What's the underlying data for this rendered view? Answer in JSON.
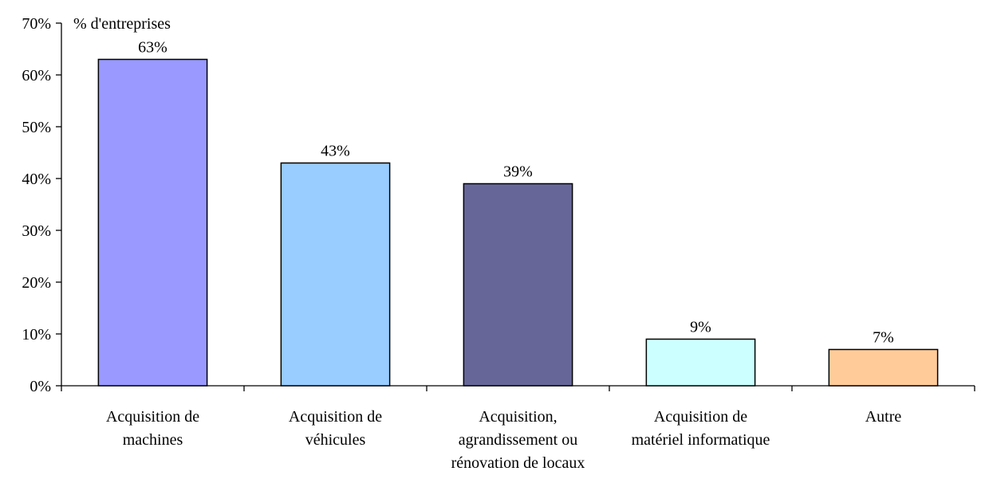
{
  "chart_data": {
    "type": "bar",
    "title": "",
    "ylabel": "% d'entreprises",
    "xlabel": "",
    "ylim": [
      0,
      70
    ],
    "ytick_step": 10,
    "ytick_labels": [
      "0%",
      "10%",
      "20%",
      "30%",
      "40%",
      "50%",
      "60%",
      "70%"
    ],
    "grid": false,
    "legend": "none",
    "categories": [
      [
        "Acquisition de",
        "machines"
      ],
      [
        "Acquisition de",
        "véhicules"
      ],
      [
        "Acquisition,",
        "agrandissement ou",
        "rénovation de locaux"
      ],
      [
        "Acquisition de",
        "matériel informatique"
      ],
      [
        "Autre"
      ]
    ],
    "values": [
      63,
      43,
      39,
      9,
      7
    ],
    "data_labels": [
      "63%",
      "43%",
      "39%",
      "9%",
      "7%"
    ],
    "bar_colors": [
      "#9999ff",
      "#99ccff",
      "#666699",
      "#ccffff",
      "#ffcc99"
    ]
  }
}
